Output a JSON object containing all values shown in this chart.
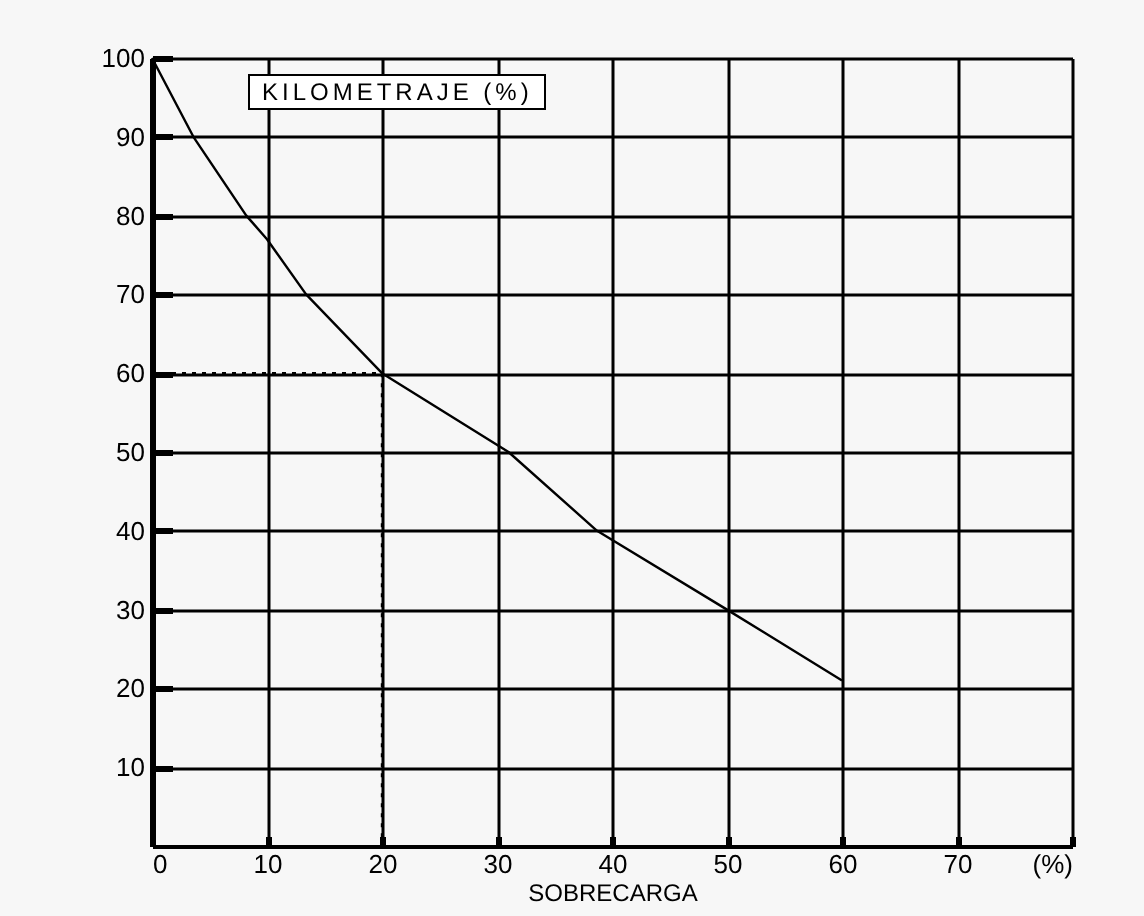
{
  "chart_data": {
    "type": "line",
    "xlabel": "SOBRECARGA",
    "ylabel": "KILOMETRAJE (%)",
    "xlim": [
      0,
      80
    ],
    "ylim": [
      0,
      100
    ],
    "xticks": [
      0,
      10,
      20,
      30,
      40,
      50,
      60,
      70,
      {
        "value": 80,
        "label": "(%)"
      }
    ],
    "yticks": [
      10,
      20,
      30,
      40,
      50,
      60,
      70,
      80,
      90,
      100
    ],
    "grid": true,
    "line_style": "solid",
    "marker": "none",
    "series": [
      {
        "color": "#000000",
        "x": [
          0,
          3.6,
          8.2,
          10,
          13.4,
          20,
          31,
          38.7,
          50,
          60
        ],
        "values": [
          100,
          90,
          80,
          77,
          70,
          60,
          50,
          40,
          30,
          21
        ]
      },
      {
        "color": "#000000",
        "line_style": "dotted",
        "x": [
          0,
          20,
          20
        ],
        "values": [
          60,
          60,
          0
        ]
      }
    ]
  }
}
